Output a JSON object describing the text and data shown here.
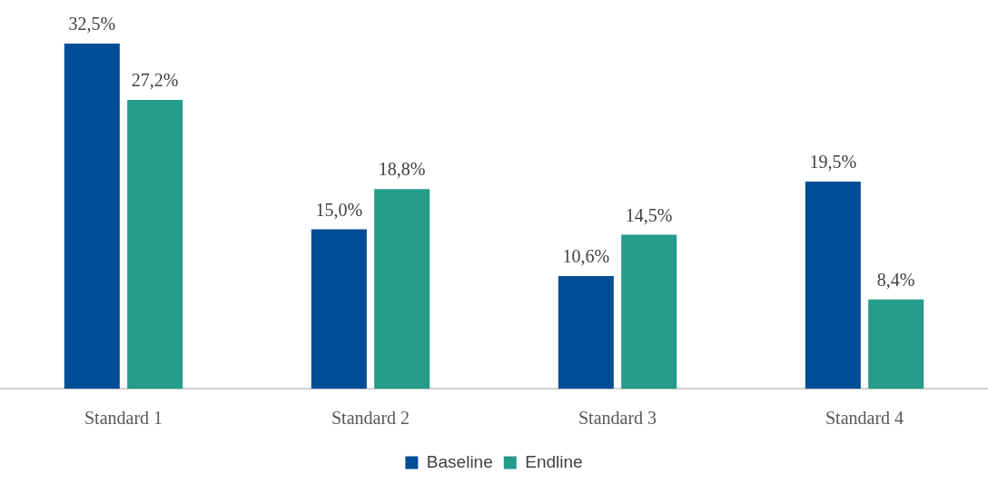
{
  "chart_data": {
    "type": "bar",
    "categories": [
      "Standard 1",
      "Standard 2",
      "Standard 3",
      "Standard 4"
    ],
    "series": [
      {
        "name": "Baseline",
        "color": "#014d96",
        "values": [
          32.5,
          15.0,
          10.6,
          19.5
        ],
        "value_labels": [
          "32,5%",
          "15,0%",
          "10,6%",
          "19,5%"
        ]
      },
      {
        "name": "Endline",
        "color": "#259b8a",
        "values": [
          27.2,
          18.8,
          14.5,
          8.4
        ],
        "value_labels": [
          "27,2%",
          "18,8%",
          "14,5%",
          "8,4%"
        ]
      }
    ],
    "legend": "bottom"
  }
}
